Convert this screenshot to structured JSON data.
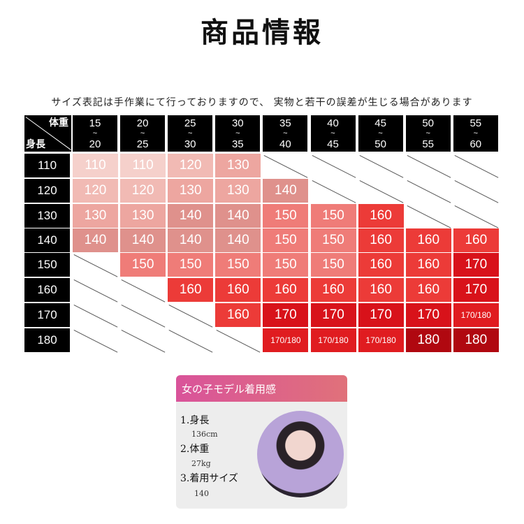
{
  "title": "商品情報",
  "note": "サイズ表記は手作業にて行っておりますので、 実物と若干の誤差が生じる場合があります",
  "table": {
    "corner": {
      "weight": "体重",
      "height": "身長"
    },
    "weight_ranges": [
      [
        "15",
        "20"
      ],
      [
        "20",
        "25"
      ],
      [
        "25",
        "30"
      ],
      [
        "30",
        "35"
      ],
      [
        "35",
        "40"
      ],
      [
        "40",
        "45"
      ],
      [
        "45",
        "50"
      ],
      [
        "50",
        "55"
      ],
      [
        "55",
        "60"
      ]
    ],
    "range_sep": "~",
    "heights": [
      "110",
      "120",
      "130",
      "140",
      "150",
      "160",
      "170",
      "180"
    ],
    "rows": [
      [
        "110",
        "110",
        "120",
        "130",
        null,
        null,
        null,
        null,
        null
      ],
      [
        "120",
        "120",
        "130",
        "130",
        "140",
        null,
        null,
        null,
        null
      ],
      [
        "130",
        "130",
        "140",
        "140",
        "150",
        "150",
        "160",
        null,
        null
      ],
      [
        "140",
        "140",
        "140",
        "140",
        "150",
        "150",
        "160",
        "160",
        "160"
      ],
      [
        null,
        "150",
        "150",
        "150",
        "150",
        "150",
        "160",
        "160",
        "170"
      ],
      [
        null,
        null,
        "160",
        "160",
        "160",
        "160",
        "160",
        "160",
        "170"
      ],
      [
        null,
        null,
        null,
        "160",
        "170",
        "170",
        "170",
        "170",
        "170/180"
      ],
      [
        null,
        null,
        null,
        null,
        "170/180",
        "170/180",
        "170/180",
        "180",
        "180"
      ]
    ],
    "colors": {
      "110": "#f5d0cb",
      "120": "#f1bab4",
      "130": "#eda6a0",
      "140": "#df918c",
      "150": "#ef7c78",
      "160": "#ec3b38",
      "170": "#d8121a",
      "170/180": "#e01c20",
      "180": "#b00810"
    }
  },
  "card": {
    "heading": "女の子モデル着用感",
    "items": [
      {
        "label": "1.身長",
        "value": "136cm"
      },
      {
        "label": "2.体重",
        "value": "27kg"
      },
      {
        "label": "3.着用サイズ",
        "value": "140"
      }
    ]
  }
}
